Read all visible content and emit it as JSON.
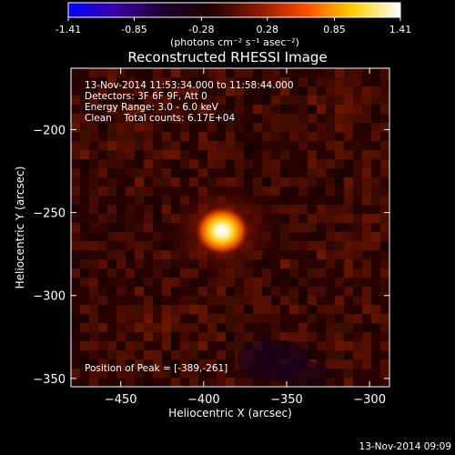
{
  "colorbar": {
    "tick_labels": [
      "-1.41",
      "-0.85",
      "-0.28",
      "0.28",
      "0.85",
      "1.41"
    ],
    "tick_values": [
      -1.41,
      -0.85,
      -0.28,
      0.28,
      0.85,
      1.41
    ],
    "range": [
      -1.41,
      1.41
    ],
    "unit_label": "(photons cm⁻² s⁻¹ asec⁻²)",
    "gradient_stops": [
      "#0000ff",
      "#3a00a0",
      "#1a0030",
      "#200000",
      "#8a1a00",
      "#ff4a00",
      "#ffd000",
      "#ffffff"
    ]
  },
  "image": {
    "title": "Reconstructed RHESSI Image",
    "info_lines": [
      "13-Nov-2014 11:53:34.000 to 11:58:44.000",
      "Detectors: 3F 6F 9F, Att 0",
      "Energy Range: 3.0 - 6.0 keV",
      "Clean    Total counts: 6.17E+04"
    ],
    "peak_label": "Position of Peak = [-389,-261]",
    "peak_x": -389,
    "peak_y": -261,
    "xlim": [
      -480,
      -288
    ],
    "ylim": [
      -355,
      -163
    ]
  },
  "axes": {
    "xlabel": "Heliocentric X (arcsec)",
    "ylabel": "Heliocentric Y (arcsec)",
    "x_tick_values": [
      -450,
      -400,
      -350,
      -300
    ],
    "x_tick_labels": [
      "−450",
      "−400",
      "−350",
      "−300"
    ],
    "y_tick_values": [
      -200,
      -250,
      -300,
      -350
    ],
    "y_tick_labels": [
      "−200",
      "−250",
      "−300",
      "−350"
    ]
  },
  "footer": {
    "timestamp": "13-Nov-2014 09:09"
  }
}
